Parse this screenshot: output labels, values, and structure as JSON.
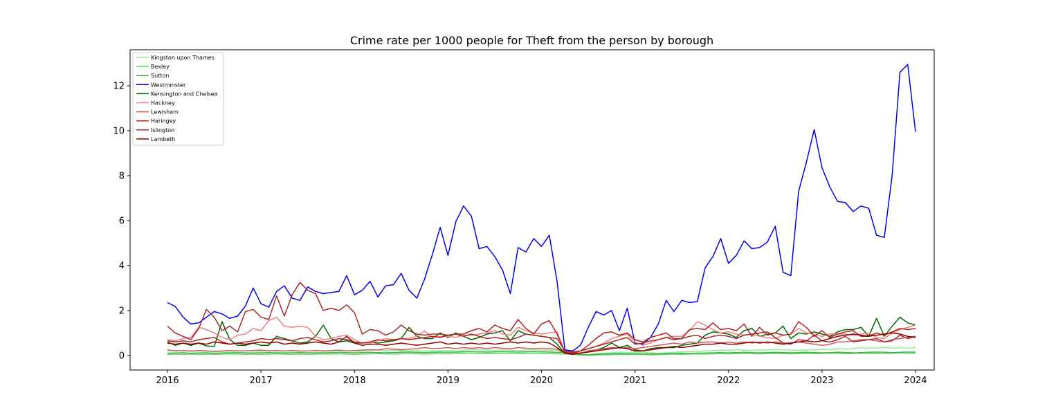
{
  "chart_data": {
    "type": "line",
    "title": "Crime rate per 1000 people for Theft from the person by borough",
    "xlabel": "",
    "ylabel": "",
    "x_start": "2016-01",
    "x_end": "2024-01",
    "x_ticks": [
      "2016",
      "2017",
      "2018",
      "2019",
      "2020",
      "2021",
      "2022",
      "2023",
      "2024"
    ],
    "y_ticks": [
      0,
      2,
      4,
      6,
      8,
      10,
      12
    ],
    "xlim": [
      2015.6,
      2024.2
    ],
    "ylim": [
      -0.65,
      13.6
    ],
    "grid": false,
    "legend_position": "top-left",
    "series": [
      {
        "name": "Kingston upon Thames",
        "color": "#90ee90",
        "values": [
          0.2,
          0.22,
          0.21,
          0.18,
          0.2,
          0.19,
          0.17,
          0.18,
          0.2,
          0.19,
          0.21,
          0.2,
          0.18,
          0.22,
          0.2,
          0.19,
          0.2,
          0.18,
          0.2,
          0.21,
          0.19,
          0.2,
          0.22,
          0.2,
          0.2,
          0.18,
          0.25,
          0.24,
          0.22,
          0.23,
          0.2,
          0.21,
          0.22,
          0.2,
          0.2,
          0.21,
          0.22,
          0.2,
          0.24,
          0.26,
          0.25,
          0.24,
          0.22,
          0.25,
          0.24,
          0.22,
          0.24,
          0.25,
          0.23,
          0.24,
          0.22,
          0.2,
          0.22,
          0.05,
          0.04,
          0.08,
          0.1,
          0.12,
          0.14,
          0.13,
          0.15,
          0.14,
          0.12,
          0.1,
          0.12,
          0.14,
          0.16,
          0.18,
          0.17,
          0.2,
          0.22,
          0.24,
          0.23,
          0.25,
          0.24,
          0.22,
          0.25,
          0.24,
          0.26,
          0.25,
          0.24,
          0.23,
          0.24,
          0.25,
          0.27,
          0.26,
          0.3,
          0.28,
          0.31,
          0.34,
          0.33,
          0.32,
          0.35,
          0.33,
          0.34,
          0.32,
          0.35
        ]
      },
      {
        "name": "Bexley",
        "color": "#5ed65e",
        "values": [
          0.05,
          0.06,
          0.05,
          0.06,
          0.05,
          0.06,
          0.05,
          0.06,
          0.07,
          0.06,
          0.05,
          0.06,
          0.05,
          0.06,
          0.07,
          0.06,
          0.05,
          0.06,
          0.05,
          0.06,
          0.07,
          0.06,
          0.07,
          0.06,
          0.05,
          0.06,
          0.07,
          0.08,
          0.07,
          0.06,
          0.07,
          0.08,
          0.07,
          0.06,
          0.07,
          0.08,
          0.07,
          0.08,
          0.09,
          0.1,
          0.09,
          0.08,
          0.09,
          0.1,
          0.09,
          0.08,
          0.09,
          0.1,
          0.09,
          0.08,
          0.07,
          0.06,
          0.05,
          0.02,
          0.01,
          0.02,
          0.03,
          0.04,
          0.05,
          0.04,
          0.05,
          0.04,
          0.03,
          0.04,
          0.05,
          0.06,
          0.05,
          0.06,
          0.07,
          0.06,
          0.07,
          0.08,
          0.07,
          0.08,
          0.09,
          0.08,
          0.07,
          0.08,
          0.09,
          0.08,
          0.07,
          0.08,
          0.09,
          0.08,
          0.09,
          0.1,
          0.09,
          0.08,
          0.09,
          0.1,
          0.09,
          0.08,
          0.09,
          0.1,
          0.11,
          0.1,
          0.1
        ]
      },
      {
        "name": "Sutton",
        "color": "#3cb44b",
        "values": [
          0.1,
          0.11,
          0.12,
          0.1,
          0.11,
          0.12,
          0.1,
          0.11,
          0.12,
          0.13,
          0.12,
          0.11,
          0.12,
          0.13,
          0.12,
          0.11,
          0.12,
          0.13,
          0.12,
          0.11,
          0.12,
          0.13,
          0.14,
          0.13,
          0.12,
          0.13,
          0.14,
          0.13,
          0.12,
          0.13,
          0.14,
          0.15,
          0.14,
          0.13,
          0.14,
          0.15,
          0.14,
          0.15,
          0.16,
          0.17,
          0.16,
          0.15,
          0.16,
          0.17,
          0.16,
          0.15,
          0.16,
          0.17,
          0.16,
          0.15,
          0.14,
          0.13,
          0.12,
          0.04,
          0.03,
          0.05,
          0.06,
          0.07,
          0.08,
          0.07,
          0.08,
          0.07,
          0.06,
          0.07,
          0.08,
          0.09,
          0.1,
          0.09,
          0.1,
          0.11,
          0.12,
          0.13,
          0.12,
          0.13,
          0.14,
          0.13,
          0.12,
          0.13,
          0.14,
          0.13,
          0.12,
          0.13,
          0.14,
          0.13,
          0.12,
          0.13,
          0.14,
          0.13,
          0.12,
          0.13,
          0.14,
          0.15,
          0.14,
          0.13,
          0.14,
          0.15,
          0.15
        ]
      },
      {
        "name": "Westminster",
        "color": "#0000ee",
        "values": [
          2.35,
          2.18,
          1.7,
          1.4,
          1.45,
          1.7,
          1.95,
          1.85,
          1.65,
          1.75,
          2.2,
          3.0,
          2.3,
          2.15,
          2.85,
          3.1,
          2.55,
          2.45,
          3.05,
          2.85,
          2.75,
          2.8,
          2.85,
          3.55,
          2.7,
          2.9,
          3.3,
          2.6,
          3.1,
          3.15,
          3.65,
          2.9,
          2.55,
          3.4,
          4.5,
          5.7,
          4.45,
          5.95,
          6.65,
          6.2,
          4.75,
          4.85,
          4.4,
          3.8,
          2.75,
          4.8,
          4.6,
          5.2,
          4.85,
          5.35,
          3.3,
          0.25,
          0.2,
          0.45,
          1.25,
          1.95,
          1.8,
          2.0,
          1.1,
          2.1,
          0.55,
          0.5,
          0.8,
          1.4,
          2.45,
          1.95,
          2.45,
          2.35,
          2.4,
          3.9,
          4.4,
          5.2,
          4.1,
          4.45,
          5.1,
          4.75,
          4.8,
          5.05,
          5.75,
          3.7,
          3.55,
          7.3,
          8.6,
          10.05,
          8.35,
          7.5,
          6.85,
          6.8,
          6.4,
          6.65,
          6.55,
          5.35,
          5.25,
          8.0,
          12.6,
          12.95,
          9.95
        ]
      },
      {
        "name": "Kensington and Chelsea",
        "color": "#006400",
        "values": [
          0.6,
          0.45,
          0.55,
          0.45,
          0.55,
          0.42,
          0.4,
          1.5,
          0.7,
          0.45,
          0.45,
          0.55,
          0.45,
          0.45,
          0.85,
          0.75,
          0.65,
          0.55,
          0.6,
          0.85,
          1.35,
          0.75,
          0.6,
          0.65,
          0.55,
          0.55,
          0.6,
          0.55,
          0.6,
          0.65,
          0.75,
          1.25,
          0.85,
          0.75,
          0.75,
          1.0,
          0.8,
          1.0,
          0.85,
          0.7,
          0.8,
          0.95,
          1.0,
          1.1,
          0.65,
          1.1,
          0.95,
          0.9,
          0.85,
          0.8,
          0.5,
          0.1,
          0.05,
          0.1,
          0.2,
          0.25,
          0.35,
          0.55,
          0.35,
          0.45,
          0.25,
          0.2,
          0.3,
          0.35,
          0.35,
          0.35,
          0.45,
          0.5,
          0.55,
          0.9,
          1.05,
          1.0,
          0.95,
          0.8,
          1.1,
          1.2,
          0.85,
          0.95,
          1.0,
          1.3,
          0.75,
          1.0,
          0.95,
          1.05,
          0.95,
          0.85,
          1.05,
          1.15,
          1.15,
          1.25,
          0.85,
          1.65,
          0.85,
          1.3,
          1.7,
          1.45,
          1.35
        ]
      },
      {
        "name": "Hackney",
        "color": "#f08080",
        "values": [
          0.7,
          0.65,
          0.75,
          0.8,
          1.25,
          1.15,
          1.0,
          0.8,
          0.7,
          0.9,
          0.95,
          1.2,
          1.1,
          1.55,
          1.7,
          1.3,
          1.25,
          1.3,
          1.25,
          0.85,
          0.7,
          0.75,
          0.85,
          0.9,
          0.7,
          0.55,
          0.55,
          0.65,
          0.75,
          0.7,
          0.75,
          0.75,
          0.85,
          1.1,
          0.8,
          0.85,
          0.85,
          0.8,
          0.9,
          0.9,
          0.95,
          1.0,
          1.1,
          0.95,
          0.9,
          1.25,
          1.1,
          1.0,
          0.95,
          1.0,
          1.05,
          0.15,
          0.1,
          0.2,
          0.3,
          0.4,
          0.55,
          0.75,
          0.85,
          0.95,
          0.6,
          0.45,
          0.55,
          0.7,
          0.8,
          0.85,
          0.85,
          1.1,
          1.5,
          1.35,
          1.15,
          1.0,
          1.05,
          0.95,
          0.9,
          0.95,
          0.85,
          0.8,
          0.75,
          0.9,
          0.95,
          1.2,
          1.0,
          0.95,
          0.85,
          0.95,
          0.95,
          0.95,
          0.9,
          0.95,
          1.0,
          0.8,
          0.75,
          1.0,
          1.15,
          1.25,
          1.35
        ]
      },
      {
        "name": "Lewisham",
        "color": "#cd5c5c",
        "values": [
          0.25,
          0.2,
          0.22,
          0.2,
          0.22,
          0.2,
          0.18,
          0.2,
          0.22,
          0.21,
          0.2,
          0.22,
          0.24,
          0.2,
          0.22,
          0.2,
          0.22,
          0.2,
          0.2,
          0.22,
          0.2,
          0.22,
          0.24,
          0.2,
          0.22,
          0.24,
          0.25,
          0.24,
          0.3,
          0.28,
          0.25,
          0.28,
          0.3,
          0.35,
          0.3,
          0.32,
          0.35,
          0.3,
          0.35,
          0.32,
          0.35,
          0.3,
          0.35,
          0.32,
          0.3,
          0.35,
          0.32,
          0.3,
          0.32,
          0.3,
          0.28,
          0.1,
          0.08,
          0.12,
          0.18,
          0.25,
          0.3,
          0.35,
          0.32,
          0.35,
          0.3,
          0.35,
          0.4,
          0.45,
          0.5,
          0.55,
          0.5,
          0.6,
          0.55,
          0.6,
          0.6,
          0.55,
          0.6,
          0.55,
          0.6,
          0.55,
          0.6,
          0.55,
          0.6,
          0.55,
          0.55,
          0.6,
          0.55,
          0.5,
          0.45,
          0.5,
          0.6,
          0.6,
          0.65,
          0.7,
          0.7,
          0.65,
          0.6,
          0.7,
          0.75,
          0.8,
          0.85
        ]
      },
      {
        "name": "Haringey",
        "color": "#b22222",
        "values": [
          0.65,
          0.6,
          0.65,
          0.6,
          0.7,
          0.75,
          0.8,
          0.6,
          0.5,
          0.55,
          0.6,
          0.65,
          0.75,
          0.7,
          0.75,
          0.7,
          0.65,
          0.75,
          0.8,
          0.7,
          0.6,
          0.65,
          0.75,
          0.7,
          0.6,
          0.55,
          0.6,
          0.7,
          0.65,
          0.7,
          0.75,
          0.7,
          0.75,
          0.8,
          0.85,
          0.8,
          0.9,
          0.95,
          0.95,
          1.1,
          1.2,
          1.05,
          1.35,
          1.2,
          1.1,
          1.6,
          1.2,
          0.95,
          1.4,
          1.55,
          0.95,
          0.15,
          0.1,
          0.2,
          0.45,
          0.75,
          1.0,
          1.05,
          0.9,
          1.0,
          0.7,
          0.6,
          0.8,
          0.9,
          1.0,
          0.75,
          0.75,
          1.15,
          1.2,
          1.15,
          1.45,
          1.15,
          1.2,
          1.1,
          1.4,
          0.85,
          1.25,
          0.9,
          1.0,
          0.9,
          0.95,
          1.5,
          1.25,
          0.85,
          1.1,
          0.8,
          0.95,
          1.05,
          1.1,
          0.85,
          0.85,
          1.0,
          0.9,
          1.05,
          1.2,
          1.15,
          1.2
        ]
      },
      {
        "name": "Islington",
        "color": "#a52a2a",
        "values": [
          1.3,
          1.0,
          0.85,
          0.7,
          1.2,
          2.05,
          1.7,
          1.1,
          1.3,
          1.05,
          1.95,
          2.05,
          1.7,
          1.6,
          2.65,
          1.75,
          2.7,
          3.25,
          2.9,
          2.75,
          2.0,
          2.1,
          2.0,
          2.25,
          1.9,
          0.95,
          1.15,
          1.1,
          0.9,
          1.05,
          1.35,
          1.1,
          0.95,
          0.9,
          0.95,
          0.95,
          0.9,
          0.95,
          0.85,
          0.95,
          0.85,
          0.75,
          0.8,
          0.75,
          0.7,
          0.8,
          0.95,
          0.9,
          0.85,
          0.8,
          0.75,
          0.2,
          0.15,
          0.2,
          0.3,
          0.4,
          0.5,
          0.6,
          0.7,
          0.8,
          0.5,
          0.55,
          0.65,
          0.7,
          0.8,
          0.7,
          0.75,
          0.85,
          0.9,
          0.75,
          0.85,
          0.9,
          0.85,
          0.75,
          0.9,
          0.95,
          1.0,
          1.05,
          0.8,
          0.55,
          0.5,
          0.7,
          0.65,
          0.9,
          0.65,
          0.6,
          0.7,
          0.85,
          0.6,
          0.65,
          0.7,
          0.75,
          0.6,
          0.65,
          0.9,
          0.75,
          0.85
        ]
      },
      {
        "name": "Lambeth",
        "color": "#8b0000",
        "values": [
          0.55,
          0.5,
          0.55,
          0.5,
          0.55,
          0.5,
          0.6,
          0.55,
          0.5,
          0.55,
          0.5,
          0.55,
          0.6,
          0.55,
          0.6,
          0.5,
          0.55,
          0.5,
          0.55,
          0.6,
          0.55,
          0.5,
          0.6,
          0.85,
          0.55,
          0.45,
          0.5,
          0.5,
          0.45,
          0.5,
          0.55,
          0.5,
          0.45,
          0.5,
          0.55,
          0.6,
          0.5,
          0.55,
          0.5,
          0.55,
          0.5,
          0.55,
          0.5,
          0.55,
          0.6,
          0.55,
          0.6,
          0.55,
          0.6,
          0.55,
          0.35,
          0.1,
          0.05,
          0.1,
          0.15,
          0.2,
          0.25,
          0.3,
          0.35,
          0.3,
          0.2,
          0.2,
          0.25,
          0.3,
          0.35,
          0.4,
          0.35,
          0.4,
          0.45,
          0.5,
          0.5,
          0.55,
          0.5,
          0.5,
          0.55,
          0.6,
          0.55,
          0.6,
          0.55,
          0.5,
          0.55,
          0.6,
          0.65,
          0.6,
          0.65,
          0.75,
          0.85,
          0.9,
          0.95,
          0.9,
          0.85,
          0.9,
          0.95,
          1.0,
          0.95,
          0.85,
          0.8
        ]
      }
    ]
  }
}
